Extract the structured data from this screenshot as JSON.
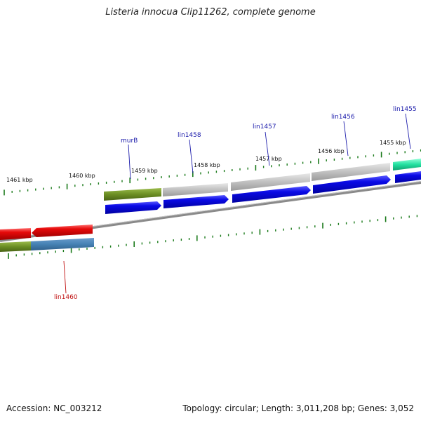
{
  "title": "Listeria innocua Clip11262, complete genome",
  "footer": {
    "accession": "Accession: NC_003212",
    "summary": "Topology: circular; Length: 3,011,208 bp; Genes: 3,052"
  },
  "colors": {
    "forward_cds": "#0a0ae6",
    "reverse_cds": "#e60a0a",
    "gene_labels_forward": "#1a1aaa",
    "gene_labels_reverse": "#c01010",
    "ticks": "#1a7a1a",
    "backbone": "#8a8a8a",
    "murB_feature": "#6b8e23",
    "gray_feature": "#c8c8c8",
    "teal_feature": "#22e0a0",
    "steelblue_feature": "#4682b4"
  },
  "kbp_labels": [
    "1455 kbp",
    "1456 kbp",
    "1457 kbp",
    "1458 kbp",
    "1459 kbp",
    "1460 kbp",
    "1461 kbp"
  ],
  "gene_labels": [
    {
      "name": "lin1455",
      "strand": "forward"
    },
    {
      "name": "lin1456",
      "strand": "forward"
    },
    {
      "name": "lin1457",
      "strand": "forward"
    },
    {
      "name": "lin1458",
      "strand": "forward"
    },
    {
      "name": "murB",
      "strand": "forward"
    },
    {
      "name": "lin1460",
      "strand": "reverse"
    }
  ]
}
